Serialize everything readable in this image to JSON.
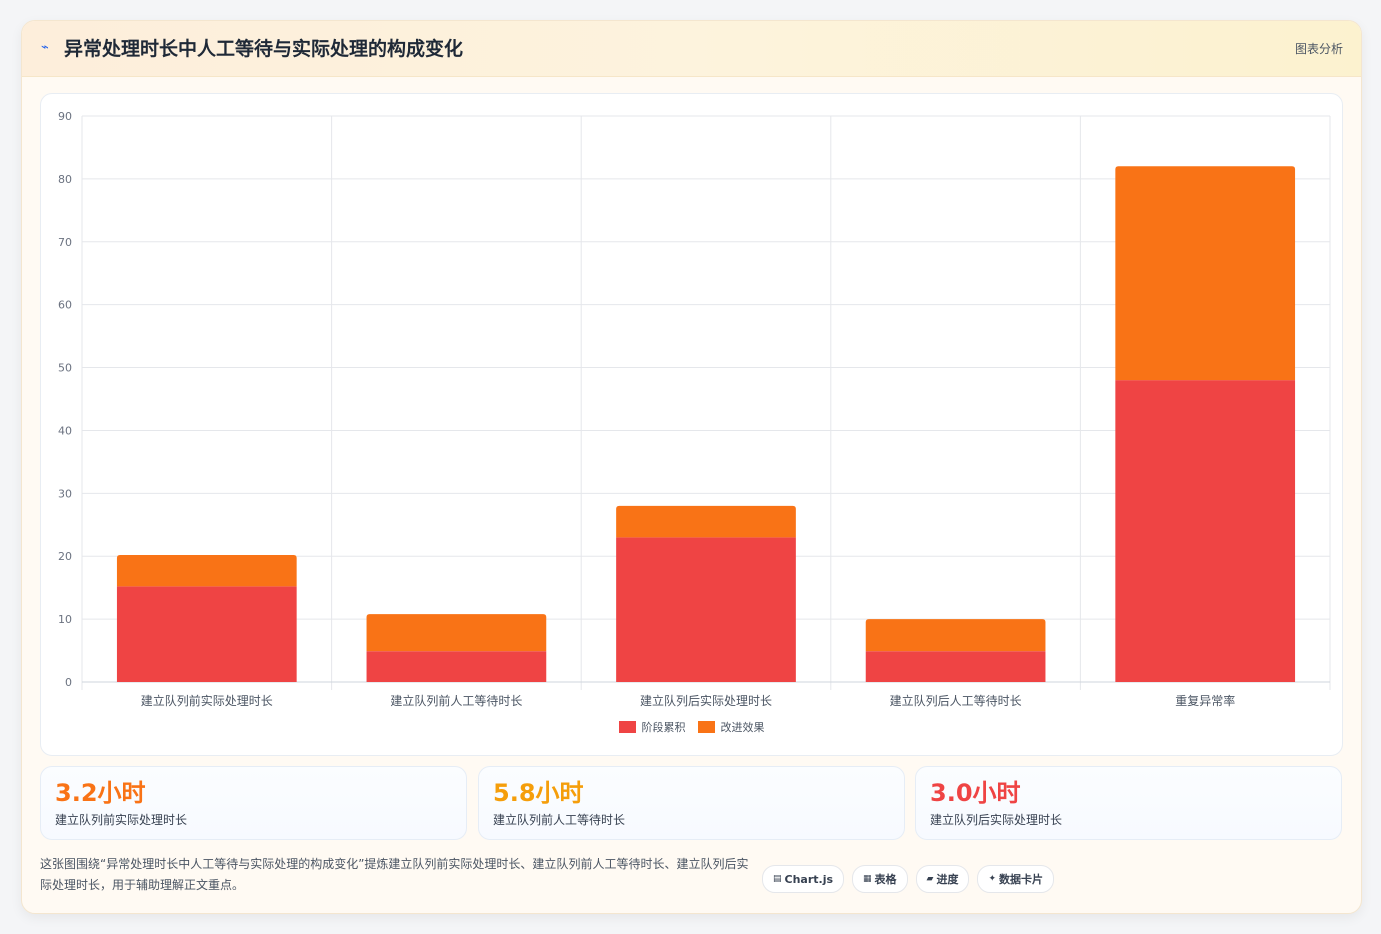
{
  "header": {
    "icon": "trend-icon",
    "title": "异常处理时长中人工等待与实际处理的构成变化",
    "action_label": "图表分析"
  },
  "chart_data": {
    "type": "bar",
    "stacked": true,
    "categories": [
      "建立队列前实际处理时长",
      "建立队列前人工等待时长",
      "建立队列后实际处理时长",
      "建立队列后人工等待时长",
      "重复异常率"
    ],
    "series": [
      {
        "name": "阶段累积",
        "color": "#ef4444",
        "values": [
          15.2,
          4.9,
          23,
          4.9,
          48
        ]
      },
      {
        "name": "改进效果",
        "color": "#f97316",
        "values": [
          5,
          5.9,
          5,
          5.1,
          34
        ]
      }
    ],
    "ylim": [
      0,
      90
    ],
    "yticks": [
      0,
      10,
      20,
      30,
      40,
      50,
      60,
      70,
      80,
      90
    ],
    "grid": true,
    "legend_position": "bottom"
  },
  "stats": [
    {
      "value": "3.2小时",
      "label": "建立队列前实际处理时长",
      "color": "#f97316"
    },
    {
      "value": "5.8小时",
      "label": "建立队列前人工等待时长",
      "color": "#f59e0b"
    },
    {
      "value": "3.0小时",
      "label": "建立队列后实际处理时长",
      "color": "#ef4444"
    }
  ],
  "description": "这张图围绕“异常处理时长中人工等待与实际处理的构成变化”提炼建立队列前实际处理时长、建立队列前人工等待时长、建立队列后实际处理时长，用于辅助理解正文重点。",
  "tags": [
    {
      "icon": "▤",
      "label": "Chart.js"
    },
    {
      "icon": "▦",
      "label": "表格"
    },
    {
      "icon": "▰",
      "label": "进度"
    },
    {
      "icon": "✦",
      "label": "数据卡片"
    }
  ]
}
